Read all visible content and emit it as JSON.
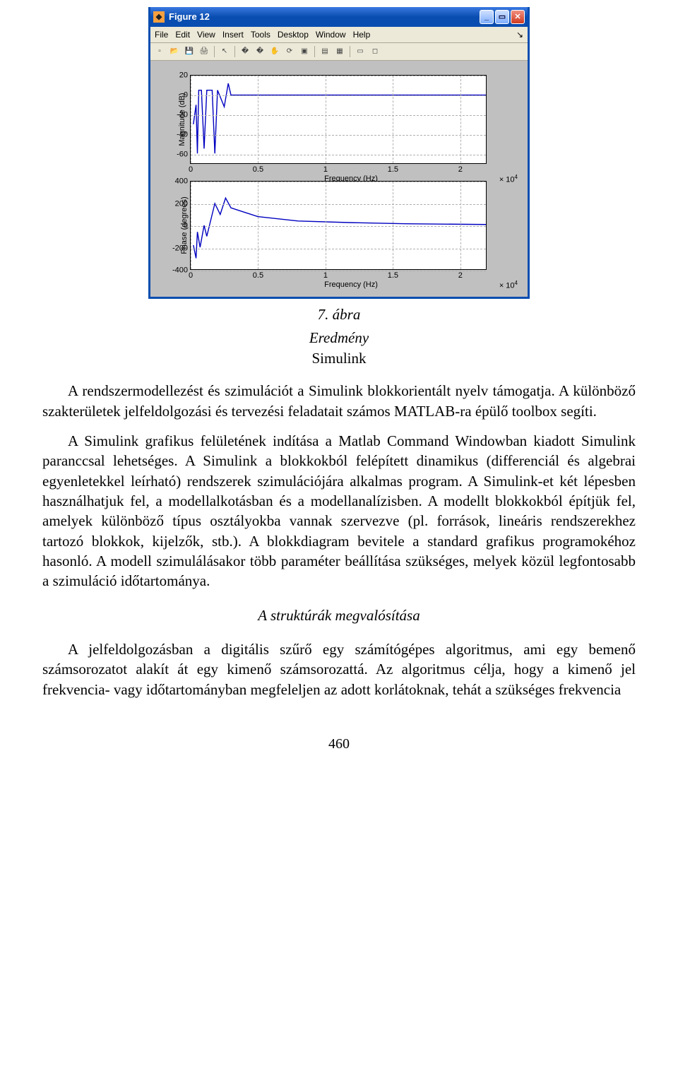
{
  "window": {
    "title": "Figure 12",
    "menus": [
      "File",
      "Edit",
      "View",
      "Insert",
      "Tools",
      "Desktop",
      "Window",
      "Help"
    ],
    "toolbar_icons": [
      {
        "name": "new-icon",
        "glyph": "▫"
      },
      {
        "name": "open-icon",
        "glyph": "📂"
      },
      {
        "name": "save-icon",
        "glyph": "💾"
      },
      {
        "name": "print-icon",
        "glyph": "🖨"
      },
      {
        "sep": true
      },
      {
        "name": "pointer-icon",
        "glyph": "↖"
      },
      {
        "sep": true
      },
      {
        "name": "zoom-in-icon",
        "glyph": "🔍+"
      },
      {
        "name": "zoom-out-icon",
        "glyph": "🔍-"
      },
      {
        "name": "pan-icon",
        "glyph": "✋"
      },
      {
        "name": "rotate-icon",
        "glyph": "⟳"
      },
      {
        "name": "datatip-icon",
        "glyph": "▣"
      },
      {
        "sep": true
      },
      {
        "name": "colorbar-icon",
        "glyph": "▤"
      },
      {
        "name": "legend-icon",
        "glyph": "▦"
      },
      {
        "sep": true
      },
      {
        "name": "hide-tools-icon",
        "glyph": "▭"
      },
      {
        "name": "show-tools-icon",
        "glyph": "◻"
      }
    ]
  },
  "charts": {
    "magnitude": {
      "ylabel": "Magnitude (dB)",
      "xlabel": "Frequency (Hz)",
      "xmultiplier": "× 10",
      "xmult_exp": "4",
      "xlim": [
        0,
        2.2
      ],
      "ylim": [
        -70,
        20
      ],
      "yticks": [
        -60,
        -40,
        -20,
        0,
        20
      ],
      "xticks": [
        0,
        0.5,
        1,
        1.5,
        2
      ],
      "line_color": "#0000c0",
      "grid_color": "#b0b0b0",
      "bg": "#ffffff",
      "series": [
        [
          0.02,
          -30
        ],
        [
          0.04,
          -10
        ],
        [
          0.05,
          -60
        ],
        [
          0.06,
          5
        ],
        [
          0.08,
          5
        ],
        [
          0.1,
          -55
        ],
        [
          0.12,
          5
        ],
        [
          0.16,
          5
        ],
        [
          0.18,
          -60
        ],
        [
          0.2,
          5
        ],
        [
          0.25,
          -12
        ],
        [
          0.28,
          12
        ],
        [
          0.3,
          0
        ],
        [
          0.31,
          0
        ],
        [
          2.2,
          0
        ]
      ]
    },
    "phase": {
      "ylabel": "Phase (degrees)",
      "xlabel": "Frequency (Hz)",
      "xmultiplier": "× 10",
      "xmult_exp": "4",
      "xlim": [
        0,
        2.2
      ],
      "ylim": [
        -400,
        400
      ],
      "yticks": [
        -400,
        -200,
        0,
        200,
        400
      ],
      "xticks": [
        0,
        0.5,
        1,
        1.5,
        2
      ],
      "line_color": "#0000c0",
      "grid_color": "#b0b0b0",
      "bg": "#ffffff",
      "series": [
        [
          0.02,
          -180
        ],
        [
          0.04,
          -300
        ],
        [
          0.05,
          -60
        ],
        [
          0.07,
          -200
        ],
        [
          0.1,
          0
        ],
        [
          0.12,
          -100
        ],
        [
          0.18,
          200
        ],
        [
          0.22,
          100
        ],
        [
          0.26,
          250
        ],
        [
          0.3,
          160
        ],
        [
          0.35,
          140
        ],
        [
          0.5,
          80
        ],
        [
          0.8,
          40
        ],
        [
          1.2,
          25
        ],
        [
          1.6,
          15
        ],
        [
          2.2,
          8
        ]
      ]
    }
  },
  "caption_num": "7. ábra",
  "caption_title": "Eredmény",
  "caption_tool": "Simulink",
  "para1_a": "A rendszermodellezést és szimulációt a Simulink blokkorientált nyelv támogatja. A különböző szakterületek jelfeldolgozási és tervezési feladatait számos MATLAB-ra épülő toolbox segíti.",
  "para1_b": "A Simulink grafikus felületének indítása a Matlab Command Windowban kiadott Simulink paranccsal lehetséges. A Simulink a blokkokból felépített dinamikus (differenciál és algebrai egyenletekkel leírható) rendszerek szimulációjára alkalmas program. A Simulink-et két lépesben használhatjuk fel, a modellalkotásban és a modellanalízisben. A modellt blokkokból építjük fel, amelyek különböző típus osztályokba vannak szervezve (pl. források, lineáris rendszerekhez tartozó blokkok, kijelzők, stb.). A blokkdiagram bevitele a standard grafikus programokéhoz hasonló. A modell szimulálásakor több paraméter beállítása szükséges, melyek közül legfontosabb a szimuláció időtartománya.",
  "section_sub": "A struktúrák megvalósítása",
  "para2": "A jelfeldolgozásban a digitális szűrő egy számítógépes algoritmus, ami egy bemenő számsorozatot alakít át egy kimenő számsorozattá. Az algoritmus célja, hogy a kimenő jel frekvencia- vagy időtartományban megfeleljen az adott korlátoknak, tehát a szükséges frekvencia",
  "pagenum": "460"
}
